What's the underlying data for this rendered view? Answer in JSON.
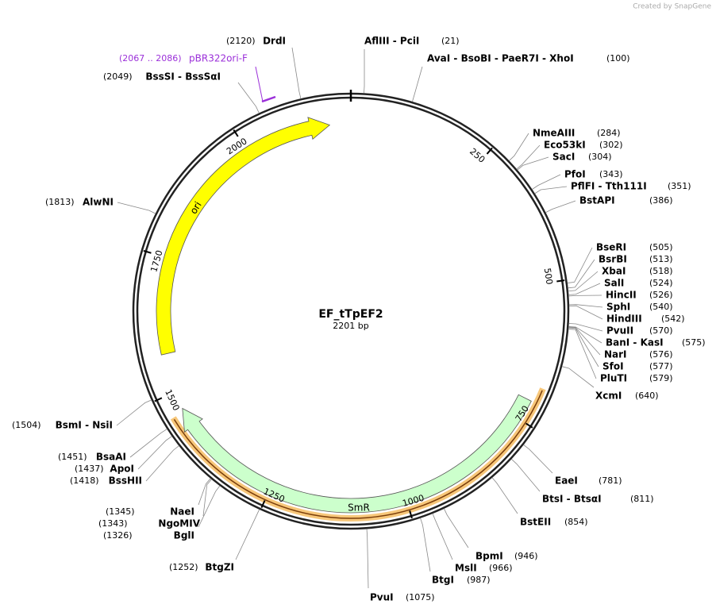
{
  "watermark": "Created by SnapGene",
  "plasmid": {
    "name": "EF_tTpEF2",
    "size": "2201 bp"
  },
  "ticks": [
    250,
    500,
    750,
    1000,
    1250,
    1500,
    1750,
    2000
  ],
  "features": [
    {
      "label": "ori"
    },
    {
      "label": "SmR"
    }
  ],
  "primer": {
    "range": "(2067 .. 2086)",
    "name": "pBR322ori-F"
  },
  "sites": [
    {
      "name": "AflIII - PciI",
      "position": "(21)"
    },
    {
      "name": "AvaI - BsoBI - PaeR7I - XhoI",
      "position": "(100)"
    },
    {
      "name": "NmeAIII",
      "position": "(284)"
    },
    {
      "name": "Eco53kI",
      "position": "(302)"
    },
    {
      "name": "SacI",
      "position": "(304)"
    },
    {
      "name": "PfoI",
      "position": "(343)"
    },
    {
      "name": "PflFI - Tth111I",
      "position": "(351)"
    },
    {
      "name": "BstAPI",
      "position": "(386)"
    },
    {
      "name": "BseRI",
      "position": "(505)"
    },
    {
      "name": "BsrBI",
      "position": "(513)"
    },
    {
      "name": "XbaI",
      "position": "(518)"
    },
    {
      "name": "SalI",
      "position": "(524)"
    },
    {
      "name": "HincII",
      "position": "(526)"
    },
    {
      "name": "SphI",
      "position": "(540)"
    },
    {
      "name": "HindIII",
      "position": "(542)"
    },
    {
      "name": "PvuII",
      "position": "(570)"
    },
    {
      "name": "BanI - KasI",
      "position": "(575)"
    },
    {
      "name": "NarI",
      "position": "(576)"
    },
    {
      "name": "SfoI",
      "position": "(577)"
    },
    {
      "name": "PluTI",
      "position": "(579)"
    },
    {
      "name": "XcmI",
      "position": "(640)"
    },
    {
      "name": "EaeI",
      "position": "(781)"
    },
    {
      "name": "BtsI - BtsαI",
      "position": "(811)"
    },
    {
      "name": "BstEII",
      "position": "(854)"
    },
    {
      "name": "BpmI",
      "position": "(946)"
    },
    {
      "name": "MslI",
      "position": "(966)"
    },
    {
      "name": "BtgI",
      "position": "(987)"
    },
    {
      "name": "PvuI",
      "position": "(1075)"
    },
    {
      "name": "BtgZI",
      "position": "(1252)"
    },
    {
      "name": "BglI",
      "position": "(1326)"
    },
    {
      "name": "NgoMIV",
      "position": "(1343)"
    },
    {
      "name": "NaeI",
      "position": "(1345)"
    },
    {
      "name": "BssHII",
      "position": "(1418)"
    },
    {
      "name": "ApoI",
      "position": "(1437)"
    },
    {
      "name": "BsaAI",
      "position": "(1451)"
    },
    {
      "name": "BsmI - NsiI",
      "position": "(1504)"
    },
    {
      "name": "AlwNI",
      "position": "(1813)"
    },
    {
      "name": "BssSI - BssSαI",
      "position": "(2049)"
    },
    {
      "name": "DrdI",
      "position": "(2120)"
    }
  ]
}
